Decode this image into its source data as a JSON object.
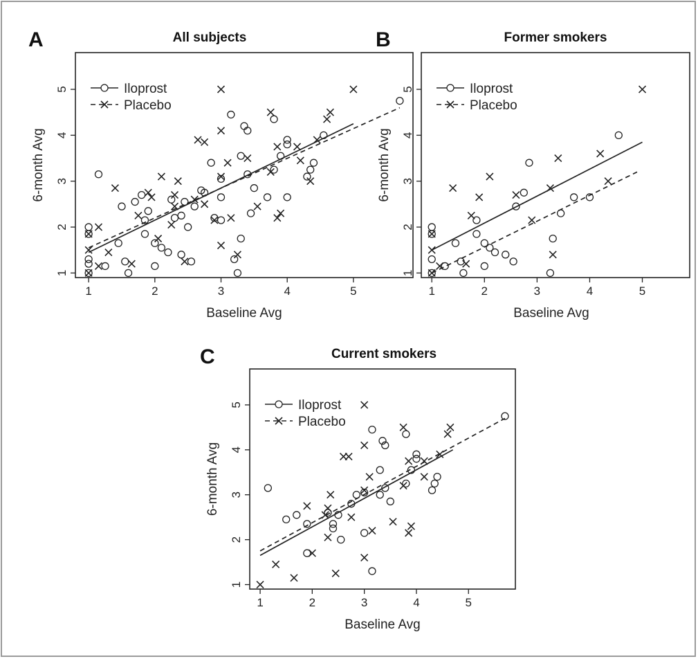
{
  "chart_data": [
    {
      "panel_label": "A",
      "type": "scatter",
      "title": "All subjects",
      "xlabel": "Baseline Avg",
      "ylabel": "6-month Avg",
      "xlim": [
        0.8,
        5.9
      ],
      "ylim": [
        0.9,
        5.8
      ],
      "x_ticks": [
        1,
        2,
        3,
        4,
        5
      ],
      "y_ticks": [
        1,
        2,
        3,
        4,
        5
      ],
      "legend": {
        "position": "top-left",
        "entries": [
          "Iloprost",
          "Placebo"
        ]
      },
      "series": [
        {
          "name": "Iloprost",
          "marker": "circle",
          "line": "solid",
          "fit": [
            [
              1.0,
              1.45
            ],
            [
              5.0,
              4.25
            ]
          ],
          "points": [
            [
              1,
              2
            ],
            [
              1,
              1.85
            ],
            [
              1,
              1.3
            ],
            [
              1,
              1.2
            ],
            [
              1,
              1
            ],
            [
              1.15,
              3.15
            ],
            [
              1.25,
              1.15
            ],
            [
              1.45,
              1.65
            ],
            [
              1.5,
              2.45
            ],
            [
              1.55,
              1.25
            ],
            [
              1.6,
              1
            ],
            [
              1.7,
              2.55
            ],
            [
              1.8,
              2.7
            ],
            [
              1.85,
              2.15
            ],
            [
              1.85,
              1.85
            ],
            [
              1.9,
              2.35
            ],
            [
              2,
              1.65
            ],
            [
              2,
              1.15
            ],
            [
              2.1,
              1.55
            ],
            [
              2.2,
              1.45
            ],
            [
              2.25,
              2.6
            ],
            [
              2.3,
              2.2
            ],
            [
              2.4,
              2.25
            ],
            [
              2.4,
              1.4
            ],
            [
              2.45,
              2.55
            ],
            [
              2.5,
              2
            ],
            [
              2.55,
              1.25
            ],
            [
              2.6,
              2.45
            ],
            [
              2.7,
              2.8
            ],
            [
              2.75,
              2.75
            ],
            [
              2.85,
              3.4
            ],
            [
              2.9,
              2.2
            ],
            [
              3,
              2.15
            ],
            [
              3,
              2.65
            ],
            [
              3,
              3.05
            ],
            [
              3.15,
              4.45
            ],
            [
              3.2,
              1.3
            ],
            [
              3.25,
              1
            ],
            [
              3.3,
              1.75
            ],
            [
              3.3,
              3.55
            ],
            [
              3.35,
              4.2
            ],
            [
              3.4,
              3.15
            ],
            [
              3.4,
              4.1
            ],
            [
              3.45,
              2.3
            ],
            [
              3.5,
              2.85
            ],
            [
              3.7,
              2.65
            ],
            [
              3.8,
              4.35
            ],
            [
              3.8,
              3.25
            ],
            [
              3.9,
              3.55
            ],
            [
              4,
              3.9
            ],
            [
              4,
              3.8
            ],
            [
              4,
              2.65
            ],
            [
              4.3,
              3.1
            ],
            [
              4.35,
              3.25
            ],
            [
              4.4,
              3.4
            ],
            [
              4.55,
              4
            ],
            [
              5.7,
              4.75
            ]
          ]
        },
        {
          "name": "Placebo",
          "marker": "x",
          "line": "dashed",
          "fit": [
            [
              1.0,
              1.55
            ],
            [
              5.7,
              4.6
            ]
          ],
          "points": [
            [
              1,
              1
            ],
            [
              1,
              1.85
            ],
            [
              1,
              1.5
            ],
            [
              1.15,
              1.15
            ],
            [
              1.15,
              2
            ],
            [
              1.3,
              1.45
            ],
            [
              1.4,
              2.85
            ],
            [
              1.65,
              1.2
            ],
            [
              1.75,
              2.25
            ],
            [
              1.9,
              2.75
            ],
            [
              1.95,
              2.65
            ],
            [
              2.05,
              1.75
            ],
            [
              2.1,
              3.1
            ],
            [
              2.25,
              2.05
            ],
            [
              2.3,
              2.45
            ],
            [
              2.3,
              2.7
            ],
            [
              2.35,
              3
            ],
            [
              2.45,
              1.25
            ],
            [
              2.6,
              2.6
            ],
            [
              2.65,
              3.9
            ],
            [
              2.75,
              3.85
            ],
            [
              2.75,
              2.5
            ],
            [
              2.9,
              2.15
            ],
            [
              3,
              1.6
            ],
            [
              3,
              4.1
            ],
            [
              3,
              3.1
            ],
            [
              3,
              5
            ],
            [
              3.1,
              3.4
            ],
            [
              3.15,
              2.2
            ],
            [
              3.25,
              1.4
            ],
            [
              3.4,
              3.5
            ],
            [
              3.55,
              2.45
            ],
            [
              3.75,
              3.2
            ],
            [
              3.75,
              4.5
            ],
            [
              3.85,
              3.75
            ],
            [
              3.85,
              2.2
            ],
            [
              3.9,
              2.3
            ],
            [
              4.15,
              3.75
            ],
            [
              4.2,
              3.45
            ],
            [
              4.35,
              3
            ],
            [
              4.45,
              3.9
            ],
            [
              4.65,
              4.5
            ],
            [
              4.6,
              4.35
            ],
            [
              5,
              5
            ]
          ]
        }
      ]
    },
    {
      "panel_label": "B",
      "type": "scatter",
      "title": "Former smokers",
      "xlabel": "Baseline Avg",
      "ylabel": "6-month Avg",
      "xlim": [
        0.8,
        5.9
      ],
      "ylim": [
        0.9,
        5.8
      ],
      "x_ticks": [
        1,
        2,
        3,
        4,
        5
      ],
      "y_ticks": [
        1,
        2,
        3,
        4,
        5
      ],
      "legend": {
        "position": "top-left",
        "entries": [
          "Iloprost",
          "Placebo"
        ]
      },
      "series": [
        {
          "name": "Iloprost",
          "marker": "circle",
          "line": "solid",
          "fit": [
            [
              1.0,
              1.5
            ],
            [
              5.0,
              3.85
            ]
          ],
          "points": [
            [
              1,
              2
            ],
            [
              1,
              1.85
            ],
            [
              1,
              1.3
            ],
            [
              1,
              1
            ],
            [
              1.25,
              1.15
            ],
            [
              1.45,
              1.65
            ],
            [
              1.55,
              1.25
            ],
            [
              1.6,
              1
            ],
            [
              1.85,
              2.15
            ],
            [
              1.85,
              1.85
            ],
            [
              2,
              1.65
            ],
            [
              2,
              1.15
            ],
            [
              2.1,
              1.55
            ],
            [
              2.2,
              1.45
            ],
            [
              2.4,
              1.4
            ],
            [
              2.55,
              1.25
            ],
            [
              2.6,
              2.45
            ],
            [
              2.75,
              2.75
            ],
            [
              2.85,
              3.4
            ],
            [
              3.25,
              1
            ],
            [
              3.3,
              1.75
            ],
            [
              3.45,
              2.3
            ],
            [
              3.7,
              2.65
            ],
            [
              4,
              2.65
            ],
            [
              4.55,
              4
            ]
          ]
        },
        {
          "name": "Placebo",
          "marker": "x",
          "line": "dashed",
          "fit": [
            [
              1.0,
              1.0
            ],
            [
              4.9,
              3.2
            ]
          ],
          "points": [
            [
              1,
              1
            ],
            [
              1,
              1.85
            ],
            [
              1,
              1.5
            ],
            [
              1.15,
              1.15
            ],
            [
              1.4,
              2.85
            ],
            [
              1.65,
              1.2
            ],
            [
              1.75,
              2.25
            ],
            [
              1.9,
              2.65
            ],
            [
              2.1,
              3.1
            ],
            [
              2.6,
              2.7
            ],
            [
              2.9,
              2.15
            ],
            [
              3.25,
              2.85
            ],
            [
              3.3,
              1.4
            ],
            [
              3.4,
              3.5
            ],
            [
              4.2,
              3.6
            ],
            [
              4.35,
              3
            ],
            [
              5,
              5
            ]
          ]
        }
      ]
    },
    {
      "panel_label": "C",
      "type": "scatter",
      "title": "Current smokers",
      "xlabel": "Baseline Avg",
      "ylabel": "6-month Avg",
      "xlim": [
        0.8,
        5.9
      ],
      "ylim": [
        0.9,
        5.8
      ],
      "x_ticks": [
        1,
        2,
        3,
        4,
        5
      ],
      "y_ticks": [
        1,
        2,
        3,
        4,
        5
      ],
      "legend": {
        "position": "top-left",
        "entries": [
          "Iloprost",
          "Placebo"
        ]
      },
      "series": [
        {
          "name": "Iloprost",
          "marker": "circle",
          "line": "solid",
          "fit": [
            [
              1.0,
              1.65
            ],
            [
              4.7,
              4.0
            ]
          ],
          "points": [
            [
              1.15,
              3.15
            ],
            [
              1.5,
              2.45
            ],
            [
              1.7,
              2.55
            ],
            [
              1.9,
              2.35
            ],
            [
              1.9,
              1.7
            ],
            [
              2.3,
              2.6
            ],
            [
              2.4,
              2.35
            ],
            [
              2.4,
              2.25
            ],
            [
              2.5,
              2.55
            ],
            [
              2.55,
              2
            ],
            [
              2.75,
              2.8
            ],
            [
              2.85,
              3
            ],
            [
              3,
              2.15
            ],
            [
              3,
              3.05
            ],
            [
              3.15,
              4.45
            ],
            [
              3.15,
              1.3
            ],
            [
              3.3,
              3.55
            ],
            [
              3.35,
              4.2
            ],
            [
              3.4,
              3.15
            ],
            [
              3.4,
              4.1
            ],
            [
              3.3,
              3
            ],
            [
              3.5,
              2.85
            ],
            [
              3.8,
              4.35
            ],
            [
              3.8,
              3.25
            ],
            [
              3.9,
              3.55
            ],
            [
              4,
              3.9
            ],
            [
              4,
              3.8
            ],
            [
              4.3,
              3.1
            ],
            [
              4.35,
              3.25
            ],
            [
              4.4,
              3.4
            ],
            [
              5.7,
              4.75
            ]
          ]
        },
        {
          "name": "Placebo",
          "marker": "x",
          "line": "dashed",
          "fit": [
            [
              1.0,
              1.75
            ],
            [
              5.7,
              4.7
            ]
          ],
          "points": [
            [
              1,
              1
            ],
            [
              1.3,
              1.45
            ],
            [
              1.65,
              1.15
            ],
            [
              1.9,
              2.75
            ],
            [
              2,
              1.7
            ],
            [
              2.25,
              2.55
            ],
            [
              2.3,
              2.05
            ],
            [
              2.3,
              2.7
            ],
            [
              2.35,
              3
            ],
            [
              2.45,
              1.25
            ],
            [
              2.6,
              3.85
            ],
            [
              2.7,
              3.85
            ],
            [
              2.75,
              2.5
            ],
            [
              3,
              1.6
            ],
            [
              3,
              4.1
            ],
            [
              3,
              5
            ],
            [
              3,
              3.1
            ],
            [
              3.1,
              3.4
            ],
            [
              3.15,
              2.2
            ],
            [
              3.55,
              2.4
            ],
            [
              3.75,
              3.2
            ],
            [
              3.75,
              4.5
            ],
            [
              3.85,
              3.75
            ],
            [
              3.85,
              2.15
            ],
            [
              3.9,
              2.3
            ],
            [
              4.15,
              3.75
            ],
            [
              4.15,
              3.4
            ],
            [
              4.45,
              3.9
            ],
            [
              4.6,
              4.35
            ],
            [
              4.65,
              4.5
            ]
          ]
        }
      ]
    }
  ]
}
